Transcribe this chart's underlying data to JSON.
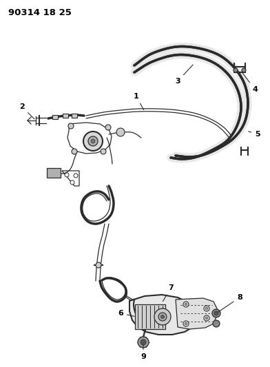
{
  "title": "90314 18 25",
  "background_color": "#ffffff",
  "line_color": "#2a2a2a",
  "label_color": "#000000",
  "figsize": [
    3.92,
    5.33
  ],
  "dpi": 100
}
